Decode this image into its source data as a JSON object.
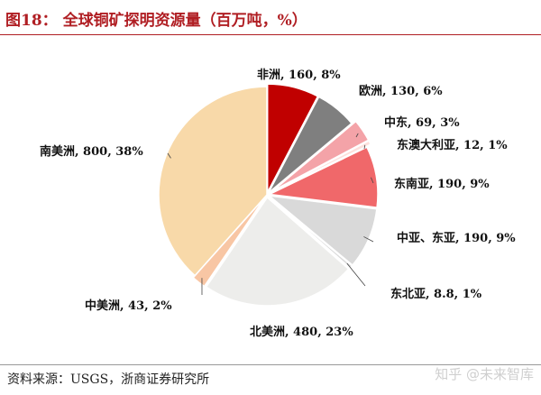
{
  "header": {
    "title": "图18： 全球铜矿探明资源量（百万吨，%）"
  },
  "footer": {
    "source": "资料来源：USGS，浙商证券研究所",
    "watermark": "知乎 @未来智库"
  },
  "colors": {
    "africa": "#c00000",
    "europe": "#7f7f7f",
    "middle_east": "#f4a3a8",
    "australia": "#fde0dc",
    "southeast_asia": "#f0686a",
    "central_east_asia": "#d9d9d9",
    "northeast_asia": "#d9d9d9",
    "north_america": "#ededeb",
    "central_america": "#f8c6a4",
    "south_america": "#f8d9a9"
  },
  "chart_data": {
    "type": "pie",
    "title": "全球铜矿探明资源量（百万吨，%）",
    "unit": "百万吨",
    "slices": [
      {
        "key": "africa",
        "name": "非洲",
        "value": 160,
        "percent": 8,
        "label": "非洲, 160, 8%"
      },
      {
        "key": "europe",
        "name": "欧洲",
        "value": 130,
        "percent": 6,
        "label": "欧洲, 130, 6%"
      },
      {
        "key": "middle_east",
        "name": "中东",
        "value": 69,
        "percent": 3,
        "label": "中东, 69, 3%"
      },
      {
        "key": "australia",
        "name": "东澳大利亚",
        "value": 12,
        "percent": 1,
        "label": "东澳大利亚, 12, 1%"
      },
      {
        "key": "southeast_asia",
        "name": "东南亚",
        "value": 190,
        "percent": 9,
        "label": "东南亚, 190, 9%"
      },
      {
        "key": "central_east_asia",
        "name": "中亚、东亚",
        "value": 190,
        "percent": 9,
        "label": "中亚、东亚, 190, 9%"
      },
      {
        "key": "northeast_asia",
        "name": "东北亚",
        "value": 8.8,
        "percent": 1,
        "label": "东北亚, 8.8, 1%"
      },
      {
        "key": "north_america",
        "name": "北美洲",
        "value": 480,
        "percent": 23,
        "label": "北美洲, 480, 23%"
      },
      {
        "key": "central_america",
        "name": "中美洲",
        "value": 43,
        "percent": 2,
        "label": "中美洲, 43, 2%"
      },
      {
        "key": "south_america",
        "name": "南美洲",
        "value": 800,
        "percent": 38,
        "label": "南美洲, 800, 38%"
      }
    ]
  }
}
